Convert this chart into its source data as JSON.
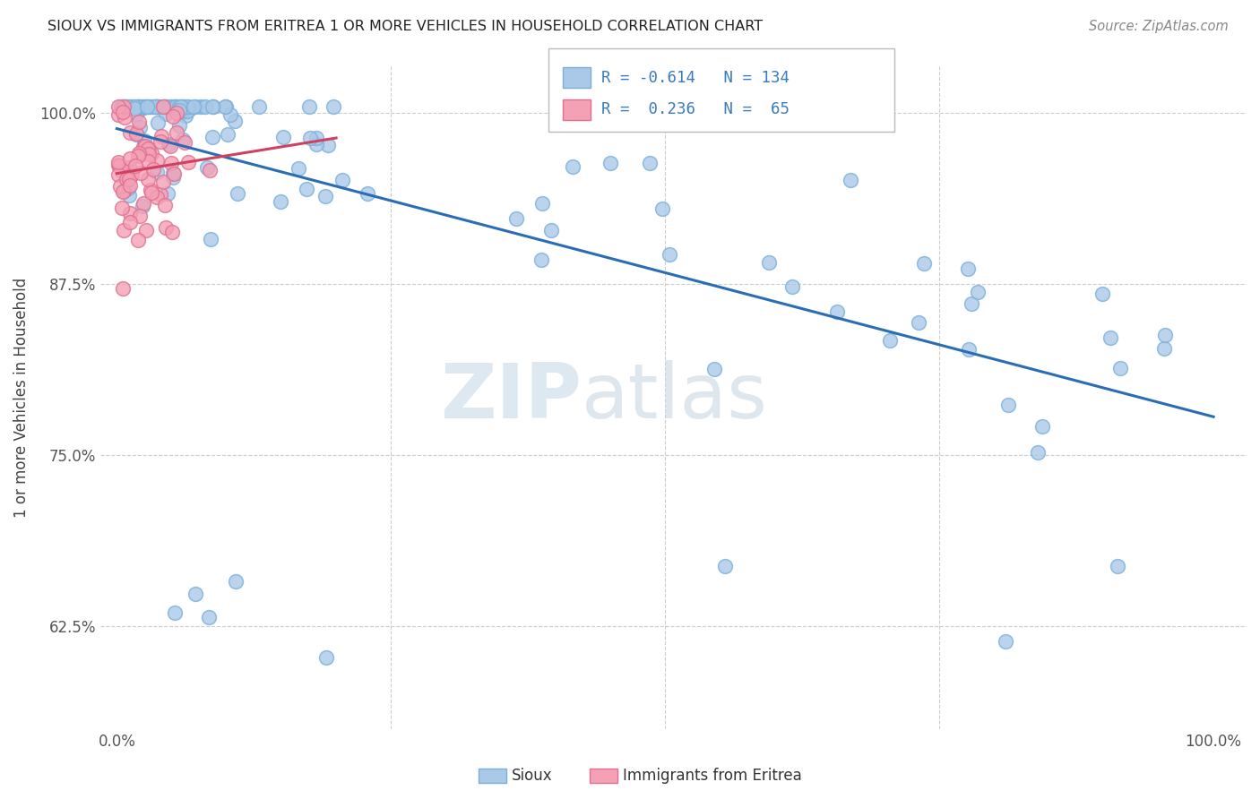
{
  "title": "SIOUX VS IMMIGRANTS FROM ERITREA 1 OR MORE VEHICLES IN HOUSEHOLD CORRELATION CHART",
  "source": "Source: ZipAtlas.com",
  "ylabel": "1 or more Vehicles in Household",
  "ytick_vals": [
    0.625,
    0.75,
    0.875,
    1.0
  ],
  "ytick_labels": [
    "62.5%",
    "75.0%",
    "87.5%",
    "100.0%"
  ],
  "xtick_labels": [
    "0.0%",
    "100.0%"
  ],
  "blue_color": "#aac9e8",
  "pink_color": "#f4a0b5",
  "blue_edge": "#7ab0d8",
  "pink_edge": "#e07090",
  "trendline_blue": "#2b6db5",
  "trendline_pink": "#d04060",
  "grid_color": "#cccccc",
  "background": "#ffffff",
  "watermark_color": "#dde8f0",
  "title_color": "#222222",
  "source_color": "#888888",
  "tick_color": "#555555",
  "legend_text_color": "#3a7bbf",
  "legend_r1": "R = -0.614",
  "legend_n1": "N = 134",
  "legend_r2": "R =  0.236",
  "legend_n2": "N =  65"
}
